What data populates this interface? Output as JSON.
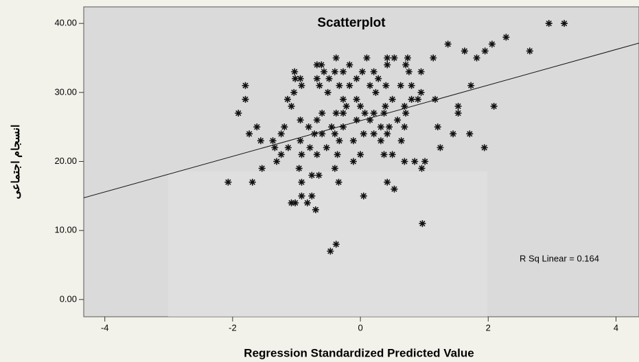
{
  "chart_data": {
    "type": "scatter",
    "title": "Scatterplot",
    "x_label": "Regression Standardized Predicted Value",
    "y_label": "انسجام اجتماعی",
    "annotation": "R Sq Linear = 0.164",
    "color": "#111111",
    "trendline": {
      "intercept": 25.9,
      "slope": 2.58
    },
    "xlim": [
      -4.33,
      4.36
    ],
    "ylim": [
      -2.5,
      42.4
    ],
    "xticks": [
      -4,
      -2,
      0,
      2,
      4
    ],
    "yticks": [
      {
        "value": 0,
        "label": "0.00"
      },
      {
        "value": 10,
        "label": "10.00"
      },
      {
        "value": 20,
        "label": "20.00"
      },
      {
        "value": 30,
        "label": "30.00"
      },
      {
        "value": 40,
        "label": "40.00"
      }
    ],
    "x": [
      2.95,
      3.19,
      2.28,
      2.06,
      1.95,
      1.82,
      2.65,
      1.37,
      1.63,
      1.14,
      0.95,
      1.73,
      2.09,
      1.53,
      1.53,
      1.21,
      1.45,
      1.71,
      1.94,
      1.25,
      0.95,
      1.17,
      0.76,
      0.74,
      0.53,
      0.42,
      0.1,
      0.42,
      0.71,
      0.21,
      0.03,
      -0.38,
      -0.61,
      -0.68,
      -0.17,
      -0.27,
      -0.4,
      -0.57,
      -0.49,
      -0.68,
      -0.06,
      0.28,
      0.4,
      0.63,
      0.8,
      0.15,
      -0.17,
      -0.33,
      -0.64,
      -1.02,
      -0.94,
      -1.03,
      -1.8,
      -1.8,
      -1.91,
      -1.74,
      -1.62,
      -1.14,
      -1.04,
      -0.92,
      -1.08,
      -0.51,
      -0.27,
      -0.06,
      0.24,
      0.5,
      0.8,
      0.9,
      0.69,
      0.39,
      0,
      -0.22,
      -0.38,
      -0.6,
      -0.27,
      0.07,
      0.15,
      -0.06,
      -0.27,
      -0.45,
      -0.68,
      -0.81,
      -0.94,
      -1.19,
      -1.24,
      -1.37,
      -1.56,
      -1.34,
      -1.13,
      -0.94,
      -0.72,
      -0.6,
      -0.4,
      -0.33,
      -0.11,
      -0.53,
      -0.79,
      -0.92,
      -0.68,
      -0.36,
      -0.11,
      0.32,
      0.45,
      0.58,
      0.69,
      0.42,
      0.32,
      0.64,
      0.37,
      0.5,
      0.69,
      0.85,
      0.96,
      1.01,
      0.21,
      0.37,
      0.71,
      -1.31,
      -1.54,
      -0.96,
      -0.4,
      -0.76,
      -0.65,
      -2.07,
      -1.69,
      -0.92,
      -0.34,
      0.42,
      0.53,
      -1.08,
      -1.02,
      -0.83,
      -0.92,
      -0.76,
      -0.7,
      0.05,
      0.97,
      -0.38,
      -0.47,
      -1.24,
      0.05,
      0.21,
      0
    ],
    "y": [
      40,
      40,
      38,
      37,
      36,
      35,
      36,
      37,
      36,
      35,
      33,
      31,
      28,
      28,
      27,
      25,
      24,
      24,
      22,
      22,
      30,
      29,
      33,
      35,
      35,
      35,
      35,
      34,
      34,
      33,
      33,
      35,
      34,
      34,
      34,
      33,
      33,
      33,
      32,
      32,
      32,
      32,
      31,
      31,
      31,
      31,
      31,
      31,
      31,
      32,
      32,
      33,
      31,
      29,
      27,
      24,
      25,
      29,
      30,
      31,
      28,
      30,
      29,
      29,
      30,
      29,
      29,
      29,
      28,
      28,
      28,
      28,
      27,
      27,
      27,
      27,
      26,
      26,
      25,
      25,
      26,
      25,
      26,
      25,
      24,
      23,
      23,
      22,
      22,
      23,
      24,
      24,
      24,
      23,
      23,
      22,
      22,
      21,
      21,
      21,
      20,
      25,
      25,
      26,
      25,
      24,
      23,
      23,
      21,
      21,
      20,
      20,
      19,
      20,
      27,
      27,
      27,
      20,
      19,
      19,
      19,
      18,
      18,
      17,
      17,
      17,
      17,
      17,
      16,
      14,
      14,
      14,
      15,
      15,
      13,
      15,
      11,
      8,
      7,
      21,
      24,
      24,
      21
    ]
  }
}
